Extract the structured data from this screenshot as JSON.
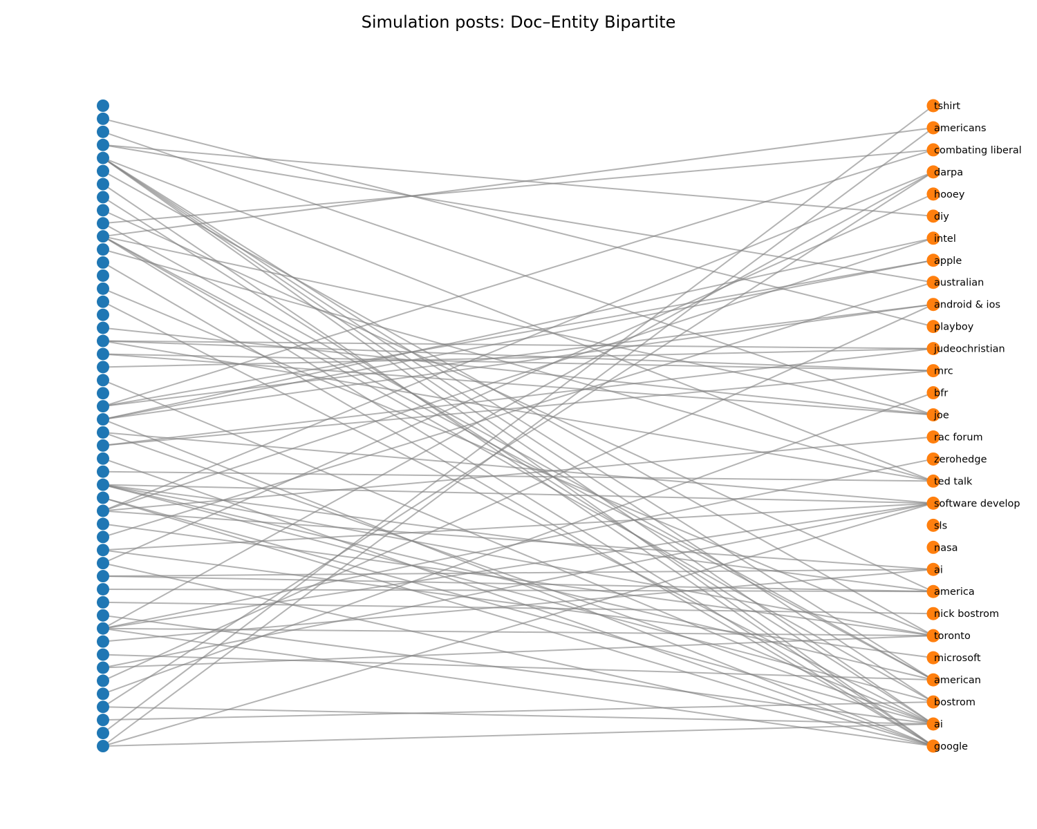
{
  "title": "Simulation posts: Doc–Entity Bipartite",
  "colors": {
    "doc_node": "#1f77b4",
    "entity_node": "#ff7f0e",
    "edge": "#808080"
  },
  "chart_data": {
    "type": "bipartite-graph",
    "doc_nodes": 50,
    "entities": [
      "tshirt",
      "americans",
      "combating liberal",
      "darpa",
      "hooey",
      "diy",
      "intel",
      "apple",
      "australian",
      "android & ios",
      "playboy",
      "judeochristian",
      "mrc",
      "bfr",
      "joe",
      "rac forum",
      "zerohedge",
      "ted talk",
      "software develop",
      "sls",
      "nasa",
      "ai",
      "america",
      "nick bostrom",
      "toronto",
      "microsoft",
      "american",
      "bostrom",
      "ai",
      "google"
    ],
    "edges": [
      [
        1,
        10
      ],
      [
        2,
        14
      ],
      [
        3,
        5
      ],
      [
        3,
        8
      ],
      [
        4,
        29
      ],
      [
        4,
        28
      ],
      [
        4,
        26
      ],
      [
        4,
        17
      ],
      [
        4,
        27
      ],
      [
        5,
        24
      ],
      [
        6,
        29
      ],
      [
        7,
        28
      ],
      [
        8,
        22
      ],
      [
        9,
        2
      ],
      [
        9,
        26
      ],
      [
        10,
        1
      ],
      [
        10,
        26
      ],
      [
        10,
        29
      ],
      [
        10,
        27
      ],
      [
        10,
        14
      ],
      [
        11,
        17
      ],
      [
        12,
        29
      ],
      [
        14,
        24
      ],
      [
        15,
        28
      ],
      [
        17,
        14
      ],
      [
        18,
        11
      ],
      [
        18,
        17
      ],
      [
        18,
        12
      ],
      [
        19,
        14
      ],
      [
        19,
        12
      ],
      [
        20,
        11
      ],
      [
        21,
        28
      ],
      [
        23,
        7
      ],
      [
        23,
        2
      ],
      [
        23,
        9
      ],
      [
        24,
        6
      ],
      [
        24,
        7
      ],
      [
        24,
        9
      ],
      [
        24,
        29
      ],
      [
        25,
        18
      ],
      [
        25,
        28
      ],
      [
        26,
        12
      ],
      [
        26,
        11
      ],
      [
        27,
        29
      ],
      [
        28,
        17
      ],
      [
        29,
        18
      ],
      [
        29,
        22
      ],
      [
        29,
        24
      ],
      [
        29,
        26
      ],
      [
        29,
        27
      ],
      [
        30,
        28
      ],
      [
        30,
        29
      ],
      [
        31,
        3
      ],
      [
        31,
        6
      ],
      [
        31,
        15
      ],
      [
        31,
        21
      ],
      [
        32,
        24
      ],
      [
        33,
        8
      ],
      [
        34,
        18
      ],
      [
        34,
        25
      ],
      [
        35,
        4
      ],
      [
        35,
        29
      ],
      [
        36,
        22
      ],
      [
        36,
        21
      ],
      [
        37,
        22
      ],
      [
        38,
        23
      ],
      [
        39,
        28
      ],
      [
        40,
        16
      ],
      [
        40,
        3
      ],
      [
        40,
        18
      ],
      [
        40,
        29
      ],
      [
        40,
        24
      ],
      [
        41,
        21
      ],
      [
        42,
        26
      ],
      [
        43,
        24
      ],
      [
        43,
        18
      ],
      [
        44,
        9
      ],
      [
        45,
        13
      ],
      [
        46,
        28
      ],
      [
        46,
        3
      ],
      [
        47,
        27
      ],
      [
        48,
        0
      ],
      [
        49,
        1
      ],
      [
        49,
        18
      ],
      [
        49,
        28
      ]
    ]
  }
}
